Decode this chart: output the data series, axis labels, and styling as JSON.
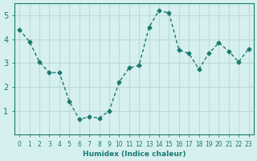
{
  "x": [
    0,
    1,
    2,
    3,
    4,
    5,
    6,
    7,
    8,
    9,
    10,
    11,
    12,
    13,
    14,
    15,
    16,
    17,
    18,
    19,
    20,
    21,
    22,
    23
  ],
  "y": [
    4.4,
    3.9,
    3.05,
    2.6,
    2.6,
    1.4,
    0.65,
    0.75,
    0.7,
    1.0,
    2.2,
    2.8,
    2.9,
    4.5,
    5.2,
    5.1,
    3.55,
    3.4,
    2.75,
    3.4,
    3.85,
    3.5,
    3.05,
    3.6
  ],
  "line_color": "#1a7a6e",
  "bg_color": "#d6f0f0",
  "grid_color": "#c0d8d8",
  "xlabel": "Humidex (Indice chaleur)",
  "ylim": [
    0,
    5.5
  ],
  "xlim": [
    -0.5,
    23.5
  ],
  "yticks": [
    1,
    2,
    3,
    4,
    5
  ],
  "xticks": [
    0,
    1,
    2,
    3,
    4,
    5,
    6,
    7,
    8,
    9,
    10,
    11,
    12,
    13,
    14,
    15,
    16,
    17,
    18,
    19,
    20,
    21,
    22,
    23
  ]
}
